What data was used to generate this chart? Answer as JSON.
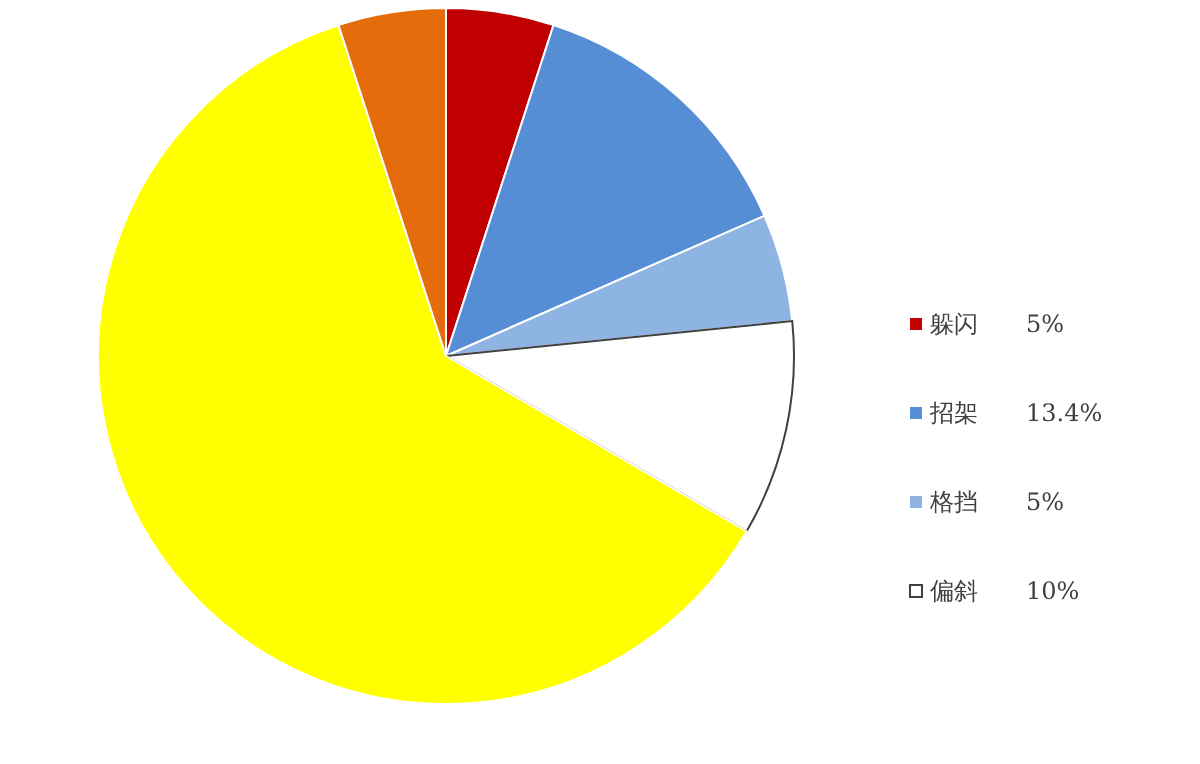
{
  "chart_data": {
    "type": "pie",
    "categories": [
      "躲闪",
      "招架",
      "格挡",
      "偏斜",
      null,
      null
    ],
    "values": [
      5,
      13.4,
      5,
      10,
      61.6,
      5
    ],
    "value_labels": [
      "5%",
      "13.4%",
      "5%",
      "10%",
      null,
      null
    ],
    "colors": [
      "#c00000",
      "#558ed5",
      "#8eb4e3",
      "#ffffff",
      "#ffff00",
      "#e46c0a"
    ],
    "legend": "right"
  }
}
